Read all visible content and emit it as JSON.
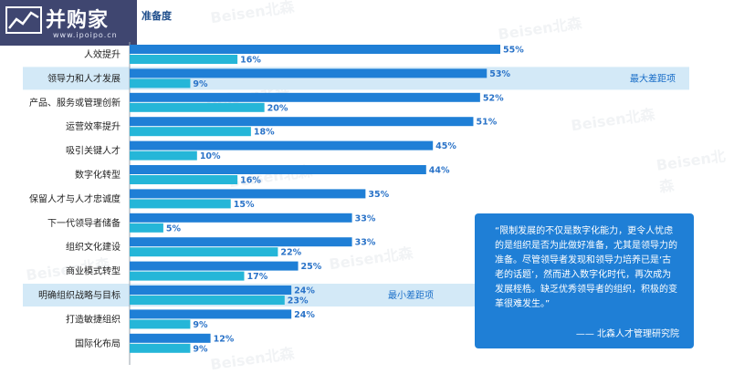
{
  "logo": {
    "name": "并购家",
    "url": "www.ipoipo.cn"
  },
  "title_fragment": "准备度",
  "chart_data": {
    "type": "bar",
    "orientation": "horizontal",
    "categories": [
      "人效提升",
      "领导力和人才发展",
      "产品、服务或管理创新",
      "运营效率提升",
      "吸引关键人才",
      "数字化转型",
      "保留人才与人才忠诚度",
      "下一代领导者储备",
      "组织文化建设",
      "商业模式转型",
      "明确组织战略与目标",
      "打造敏捷组织",
      "国际化布局"
    ],
    "series": [
      {
        "values": [
          55,
          53,
          52,
          51,
          45,
          44,
          35,
          33,
          33,
          25,
          24,
          24,
          12
        ],
        "color": "#1f7fd6"
      },
      {
        "values": [
          16,
          9,
          20,
          18,
          10,
          16,
          15,
          5,
          22,
          17,
          23,
          9,
          9
        ],
        "color": "#25b6d8"
      }
    ],
    "value_suffix": "%",
    "xlim": [
      0,
      100
    ],
    "highlights": [
      {
        "index": 1,
        "note": "最大差距项"
      },
      {
        "index": 10,
        "note": "最小差距项"
      }
    ]
  },
  "quote": {
    "text": "“限制发展的不仅是数字化能力，更令人忧虑的是组织是否为此做好准备，尤其是领导力的准备。尽管领导者发现和领导力培养已是‘古老的话题’，然而进入数字化时代，再次成为发展桎梏。缺乏优秀领导者的组织，积极的变革很难发生。”",
    "source": "—— 北森人才管理研究院"
  },
  "watermark": "Beisen北森"
}
